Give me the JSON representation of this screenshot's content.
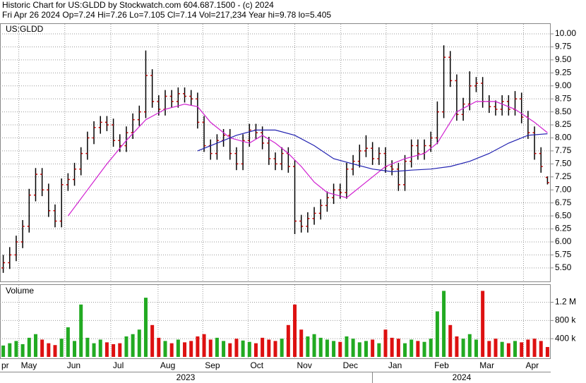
{
  "chart_data": {
    "type": "ohlc",
    "title": "Historic Chart for US:GLDD by Stockwatch.com 604.687.1500 - (c) 2024",
    "subtitle": "Fri Apr 26 2024  Op=7.24  Hi=7.26  Lo=7.105  Cl=7.14  Vol=217,234  Year hi=9.78  lo=5.405",
    "symbol": "US:GLDD",
    "volume_label": "Volume",
    "open": [
      5.5,
      5.6,
      5.75,
      6.0,
      6.3,
      6.9,
      7.3,
      7.0,
      6.6,
      6.4,
      7.1,
      7.2,
      7.4,
      7.7,
      8.0,
      8.2,
      8.3,
      8.25,
      7.95,
      7.85,
      8.1,
      8.35,
      8.5,
      9.2,
      8.7,
      8.55,
      8.8,
      8.7,
      8.85,
      8.8,
      8.75,
      8.3,
      7.85,
      7.7,
      7.95,
      8.05,
      7.7,
      7.5,
      7.95,
      8.15,
      8.1,
      7.9,
      7.6,
      7.5,
      7.7,
      7.45,
      6.4,
      6.3,
      6.45,
      6.55,
      6.7,
      6.85,
      7.0,
      6.95,
      7.4,
      7.55,
      7.75,
      7.8,
      7.6,
      7.7,
      7.45,
      7.4,
      7.1,
      7.55,
      7.85,
      7.7,
      7.85,
      8.0,
      8.5,
      9.55,
      9.1,
      8.45,
      8.65,
      9.0,
      9.05,
      8.7,
      8.6,
      8.55,
      8.7,
      8.55,
      8.75,
      8.4,
      8.1,
      7.7,
      7.24
    ],
    "high": [
      5.75,
      5.9,
      6.12,
      6.42,
      7.02,
      7.42,
      7.42,
      7.12,
      6.72,
      7.22,
      7.32,
      7.52,
      7.82,
      8.12,
      8.32,
      8.42,
      8.42,
      8.37,
      8.07,
      8.22,
      8.47,
      8.62,
      9.68,
      9.32,
      8.82,
      8.92,
      8.92,
      8.97,
      8.97,
      8.92,
      8.87,
      8.42,
      7.97,
      8.07,
      8.17,
      8.17,
      7.82,
      8.07,
      8.27,
      8.27,
      8.22,
      8.02,
      7.72,
      7.82,
      7.82,
      7.57,
      6.52,
      6.57,
      6.67,
      6.82,
      6.97,
      7.12,
      7.12,
      7.52,
      7.67,
      7.87,
      8.05,
      7.92,
      7.82,
      7.82,
      7.57,
      7.52,
      7.67,
      7.97,
      7.97,
      7.97,
      8.12,
      8.7,
      9.78,
      9.67,
      9.22,
      8.77,
      9.28,
      9.17,
      9.17,
      8.82,
      8.72,
      8.82,
      8.82,
      8.9,
      8.87,
      8.52,
      8.22,
      7.82,
      7.26
    ],
    "low": [
      5.405,
      5.48,
      5.63,
      5.88,
      6.18,
      6.78,
      6.88,
      6.48,
      6.28,
      6.28,
      6.98,
      7.08,
      7.28,
      7.58,
      7.88,
      8.08,
      8.13,
      7.83,
      7.73,
      7.73,
      7.98,
      8.23,
      8.38,
      8.58,
      8.43,
      8.43,
      8.58,
      8.58,
      8.68,
      8.63,
      8.18,
      7.73,
      7.58,
      7.58,
      7.83,
      7.58,
      7.38,
      7.38,
      7.83,
      7.98,
      7.78,
      7.48,
      7.38,
      7.38,
      7.33,
      6.15,
      6.18,
      6.18,
      6.33,
      6.43,
      6.58,
      6.73,
      6.83,
      6.83,
      7.28,
      7.43,
      7.63,
      7.48,
      7.48,
      7.33,
      7.28,
      6.98,
      6.98,
      7.43,
      7.58,
      7.58,
      7.73,
      7.88,
      8.38,
      8.98,
      8.33,
      8.33,
      8.53,
      8.88,
      8.58,
      8.48,
      8.43,
      8.43,
      8.43,
      8.43,
      8.28,
      7.98,
      7.58,
      7.33,
      7.105
    ],
    "close": [
      5.6,
      5.75,
      6.0,
      6.3,
      6.9,
      7.3,
      7.0,
      6.6,
      6.4,
      7.1,
      7.2,
      7.4,
      7.7,
      8.0,
      8.2,
      8.3,
      8.25,
      7.95,
      7.85,
      8.1,
      8.35,
      8.5,
      9.2,
      8.7,
      8.55,
      8.8,
      8.7,
      8.85,
      8.8,
      8.75,
      8.3,
      7.85,
      7.7,
      7.95,
      8.05,
      7.7,
      7.5,
      7.95,
      8.15,
      8.1,
      7.9,
      7.6,
      7.5,
      7.7,
      7.45,
      6.4,
      6.3,
      6.45,
      6.55,
      6.7,
      6.85,
      7.0,
      6.95,
      7.4,
      7.55,
      7.75,
      7.8,
      7.6,
      7.7,
      7.45,
      7.4,
      7.1,
      7.55,
      7.85,
      7.7,
      7.85,
      8.0,
      8.5,
      9.55,
      9.1,
      8.45,
      8.65,
      9.0,
      9.05,
      8.7,
      8.6,
      8.55,
      8.7,
      8.55,
      8.75,
      8.4,
      8.1,
      7.7,
      7.45,
      7.14
    ],
    "volume": [
      250000,
      300000,
      350000,
      280000,
      420000,
      500000,
      380000,
      300000,
      260000,
      400000,
      650000,
      350000,
      1150000,
      420000,
      300000,
      380000,
      320000,
      280000,
      300000,
      450000,
      500000,
      600000,
      1300000,
      700000,
      420000,
      350000,
      300000,
      380000,
      320000,
      350000,
      450000,
      500000,
      380000,
      420000,
      350000,
      300000,
      400000,
      360000,
      330000,
      300000,
      420000,
      380000,
      350000,
      400000,
      700000,
      1150000,
      600000,
      450000,
      500000,
      420000,
      380000,
      350000,
      330000,
      450000,
      400000,
      320000,
      350000,
      380000,
      300000,
      600000,
      420000,
      400000,
      300000,
      380000,
      350000,
      330000,
      400000,
      1000000,
      1450000,
      700000,
      450000,
      400000,
      500000,
      380000,
      1450000,
      350000,
      400000,
      330000,
      300000,
      350000,
      320000,
      380000,
      400000,
      350000,
      217234
    ],
    "xlim": [
      -0.5,
      84.5
    ],
    "xticks": [
      {
        "value": -1.8,
        "label": "pr"
      },
      {
        "value": 2.4,
        "label": "May"
      },
      {
        "value": 9.5,
        "label": "Jun"
      },
      {
        "value": 16.6,
        "label": "Jul"
      },
      {
        "value": 23.9,
        "label": "Aug"
      },
      {
        "value": 30.8,
        "label": "Sep"
      },
      {
        "value": 37.8,
        "label": "Oct"
      },
      {
        "value": 45.0,
        "label": "Nov"
      },
      {
        "value": 52.1,
        "label": "Dec"
      },
      {
        "value": 59.1,
        "label": "Jan"
      },
      {
        "value": 66.2,
        "label": "Feb"
      },
      {
        "value": 73.2,
        "label": "Mar"
      },
      {
        "value": 80.3,
        "label": "Apr"
      }
    ],
    "years": [
      "2023",
      "2024"
    ],
    "ylim": [
      5.24,
      10.19
    ],
    "yticks": [
      {
        "value": 5.5,
        "label": "5.50"
      },
      {
        "value": 5.75,
        "label": "5.75"
      },
      {
        "value": 6,
        "label": "6.00"
      },
      {
        "value": 6.25,
        "label": "6.25"
      },
      {
        "value": 6.5,
        "label": "6.50"
      },
      {
        "value": 6.75,
        "label": "6.75"
      },
      {
        "value": 7,
        "label": "7.00"
      },
      {
        "value": 7.25,
        "label": "7.25"
      },
      {
        "value": 7.5,
        "label": "7.50"
      },
      {
        "value": 7.75,
        "label": "7.75"
      },
      {
        "value": 8,
        "label": "8.00"
      },
      {
        "value": 8.25,
        "label": "8.25"
      },
      {
        "value": 8.5,
        "label": "8.50"
      },
      {
        "value": 8.75,
        "label": "8.75"
      },
      {
        "value": 9,
        "label": "9.00"
      },
      {
        "value": 9.25,
        "label": "9.25"
      },
      {
        "value": 9.5,
        "label": "9.50"
      },
      {
        "value": 9.75,
        "label": "9.75"
      },
      {
        "value": 10,
        "label": "10.00"
      }
    ],
    "volume_lim": [
      0,
      1580000
    ],
    "volume_ticks": [
      {
        "value": 400000,
        "label": "400 k"
      },
      {
        "value": 800000,
        "label": "800 k"
      },
      {
        "value": 1200000,
        "label": "1.2 M"
      }
    ],
    "moving_averages": [
      {
        "color": "#d020d0",
        "x": [
          10,
          13,
          16,
          19,
          22,
          25,
          28,
          30,
          32,
          35,
          38,
          40,
          42,
          44,
          46,
          48,
          50,
          53,
          56,
          59,
          62,
          65,
          67,
          70,
          73,
          76,
          79,
          82,
          84
        ],
        "values": [
          6.5,
          7.0,
          7.5,
          7.95,
          8.35,
          8.55,
          8.65,
          8.6,
          8.3,
          8.0,
          7.9,
          8.05,
          7.9,
          7.7,
          7.45,
          7.15,
          6.95,
          6.85,
          7.15,
          7.45,
          7.6,
          7.7,
          7.9,
          8.5,
          8.7,
          8.7,
          8.55,
          8.3,
          8.1
        ]
      },
      {
        "color": "#2020b0",
        "x": [
          30,
          33,
          36,
          39,
          42,
          45,
          48,
          51,
          54,
          57,
          60,
          63,
          66,
          69,
          72,
          75,
          78,
          81,
          84
        ],
        "values": [
          7.75,
          7.9,
          8.05,
          8.15,
          8.15,
          8.05,
          7.85,
          7.6,
          7.5,
          7.4,
          7.35,
          7.38,
          7.4,
          7.45,
          7.55,
          7.7,
          7.9,
          8.05,
          8.08
        ]
      }
    ],
    "bar_color": "#000000",
    "tick_color": "#c00000",
    "up_color": "#22aa22",
    "down_color": "#dd1111",
    "grid": true
  }
}
